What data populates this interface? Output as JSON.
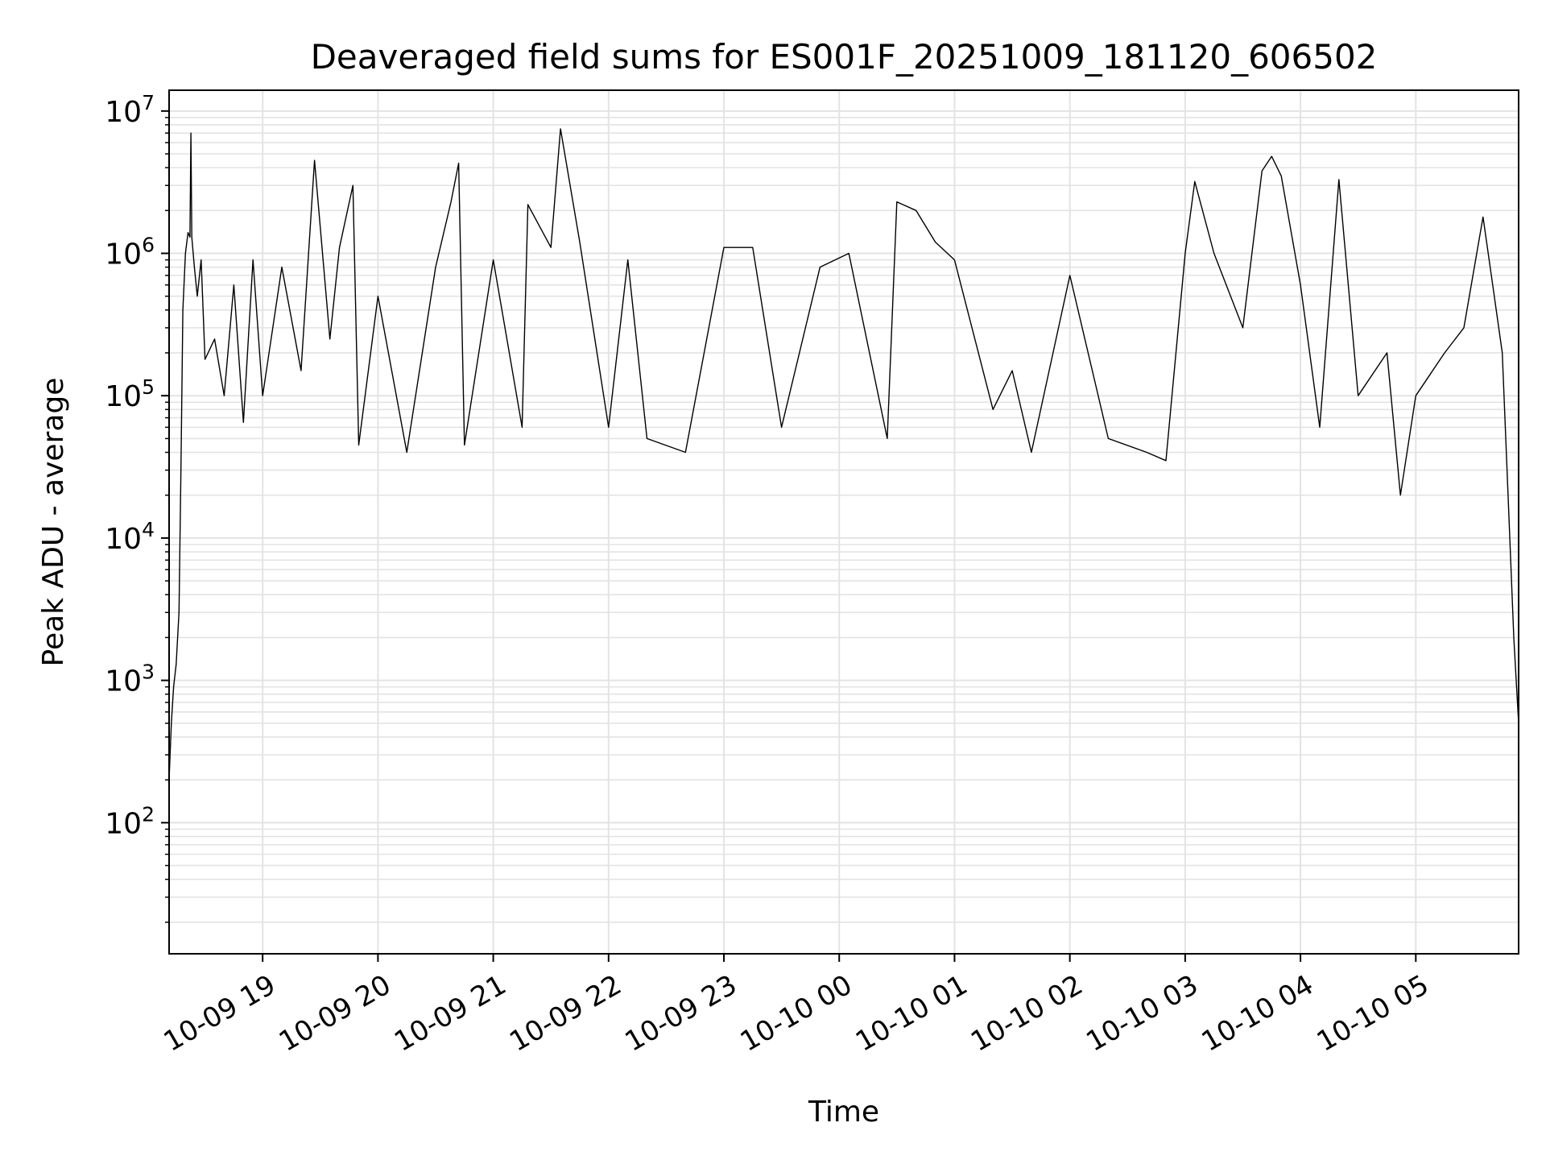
{
  "chart_data": {
    "type": "line",
    "title": "Deaveraged field sums for ES001F_20251009_181120_606502",
    "xlabel": "Time",
    "ylabel": "Peak ADU - average",
    "yscale": "log",
    "ylim": [
      12,
      14000000
    ],
    "xlim": [
      "2025-10-09 18:11:20",
      "2025-10-10 05:53:30"
    ],
    "grid": true,
    "line_color": "#000000",
    "grid_color": "#e3e3e3",
    "y_ticks": [
      {
        "base": "10",
        "exp": "2",
        "value": 100
      },
      {
        "base": "10",
        "exp": "3",
        "value": 1000
      },
      {
        "base": "10",
        "exp": "4",
        "value": 10000
      },
      {
        "base": "10",
        "exp": "5",
        "value": 100000
      },
      {
        "base": "10",
        "exp": "6",
        "value": 1000000
      },
      {
        "base": "10",
        "exp": "7",
        "value": 10000000
      }
    ],
    "x_ticks": [
      {
        "label": "10-09 19",
        "time": "2025-10-09 19:00"
      },
      {
        "label": "10-09 20",
        "time": "2025-10-09 20:00"
      },
      {
        "label": "10-09 21",
        "time": "2025-10-09 21:00"
      },
      {
        "label": "10-09 22",
        "time": "2025-10-09 22:00"
      },
      {
        "label": "10-09 23",
        "time": "2025-10-09 23:00"
      },
      {
        "label": "10-10 00",
        "time": "2025-10-10 00:00"
      },
      {
        "label": "10-10 01",
        "time": "2025-10-10 01:00"
      },
      {
        "label": "10-10 02",
        "time": "2025-10-10 02:00"
      },
      {
        "label": "10-10 03",
        "time": "2025-10-10 03:00"
      },
      {
        "label": "10-10 04",
        "time": "2025-10-10 04:00"
      },
      {
        "label": "10-10 05",
        "time": "2025-10-10 05:00"
      }
    ],
    "series": [
      {
        "points": [
          [
            "2025-10-09 18:11:20",
            200
          ],
          [
            "2025-10-09 18:12:30",
            500
          ],
          [
            "2025-10-09 18:13:40",
            900
          ],
          [
            "2025-10-09 18:15:00",
            1300
          ],
          [
            "2025-10-09 18:16:30",
            3000
          ],
          [
            "2025-10-09 18:17:30",
            30000
          ],
          [
            "2025-10-09 18:18:30",
            400000
          ],
          [
            "2025-10-09 18:19:50",
            1000000
          ],
          [
            "2025-10-09 18:21:10",
            1400000
          ],
          [
            "2025-10-09 18:22:10",
            1300000
          ],
          [
            "2025-10-09 18:22:40",
            7000000
          ],
          [
            "2025-10-09 18:23:10",
            1300000
          ],
          [
            "2025-10-09 18:24:30",
            800000
          ],
          [
            "2025-10-09 18:26:00",
            500000
          ],
          [
            "2025-10-09 18:28:00",
            900000
          ],
          [
            "2025-10-09 18:30:00",
            180000
          ],
          [
            "2025-10-09 18:35:00",
            250000
          ],
          [
            "2025-10-09 18:40:00",
            100000
          ],
          [
            "2025-10-09 18:45:00",
            600000
          ],
          [
            "2025-10-09 18:50:00",
            65000
          ],
          [
            "2025-10-09 18:55:00",
            900000
          ],
          [
            "2025-10-09 19:00:00",
            100000
          ],
          [
            "2025-10-09 19:10:00",
            800000
          ],
          [
            "2025-10-09 19:20:00",
            150000
          ],
          [
            "2025-10-09 19:27:00",
            4500000
          ],
          [
            "2025-10-09 19:35:00",
            250000
          ],
          [
            "2025-10-09 19:40:00",
            1100000
          ],
          [
            "2025-10-09 19:47:00",
            3000000
          ],
          [
            "2025-10-09 19:50:00",
            45000
          ],
          [
            "2025-10-09 20:00:00",
            500000
          ],
          [
            "2025-10-09 20:15:00",
            40000
          ],
          [
            "2025-10-09 20:30:00",
            800000
          ],
          [
            "2025-10-09 20:38:00",
            2300000
          ],
          [
            "2025-10-09 20:42:00",
            4300000
          ],
          [
            "2025-10-09 20:45:00",
            45000
          ],
          [
            "2025-10-09 21:00:00",
            900000
          ],
          [
            "2025-10-09 21:15:00",
            60000
          ],
          [
            "2025-10-09 21:18:00",
            2200000
          ],
          [
            "2025-10-09 21:30:00",
            1100000
          ],
          [
            "2025-10-09 21:35:00",
            7500000
          ],
          [
            "2025-10-09 21:45:00",
            1200000
          ],
          [
            "2025-10-09 22:00:00",
            60000
          ],
          [
            "2025-10-09 22:10:00",
            900000
          ],
          [
            "2025-10-09 22:20:00",
            50000
          ],
          [
            "2025-10-09 22:40:00",
            40000
          ],
          [
            "2025-10-09 23:00:00",
            1100000
          ],
          [
            "2025-10-09 23:15:00",
            1100000
          ],
          [
            "2025-10-09 23:30:00",
            60000
          ],
          [
            "2025-10-09 23:50:00",
            800000
          ],
          [
            "2025-10-10 00:05:00",
            1000000
          ],
          [
            "2025-10-10 00:25:00",
            50000
          ],
          [
            "2025-10-10 00:30:00",
            2300000
          ],
          [
            "2025-10-10 00:40:00",
            2000000
          ],
          [
            "2025-10-10 00:50:00",
            1200000
          ],
          [
            "2025-10-10 01:00:00",
            900000
          ],
          [
            "2025-10-10 01:20:00",
            80000
          ],
          [
            "2025-10-10 01:30:00",
            150000
          ],
          [
            "2025-10-10 01:40:00",
            40000
          ],
          [
            "2025-10-10 02:00:00",
            700000
          ],
          [
            "2025-10-10 02:20:00",
            50000
          ],
          [
            "2025-10-10 02:40:00",
            40000
          ],
          [
            "2025-10-10 02:50:00",
            35000
          ],
          [
            "2025-10-10 03:00:00",
            1000000
          ],
          [
            "2025-10-10 03:05:00",
            3200000
          ],
          [
            "2025-10-10 03:15:00",
            1000000
          ],
          [
            "2025-10-10 03:30:00",
            300000
          ],
          [
            "2025-10-10 03:40:00",
            3800000
          ],
          [
            "2025-10-10 03:45:00",
            4800000
          ],
          [
            "2025-10-10 03:50:00",
            3500000
          ],
          [
            "2025-10-10 04:00:00",
            600000
          ],
          [
            "2025-10-10 04:10:00",
            60000
          ],
          [
            "2025-10-10 04:20:00",
            3300000
          ],
          [
            "2025-10-10 04:30:00",
            100000
          ],
          [
            "2025-10-10 04:45:00",
            200000
          ],
          [
            "2025-10-10 04:52:00",
            20000
          ],
          [
            "2025-10-10 05:00:00",
            100000
          ],
          [
            "2025-10-10 05:15:00",
            200000
          ],
          [
            "2025-10-10 05:25:00",
            300000
          ],
          [
            "2025-10-10 05:35:00",
            1800000
          ],
          [
            "2025-10-10 05:40:00",
            600000
          ],
          [
            "2025-10-10 05:45:00",
            200000
          ],
          [
            "2025-10-10 05:48:00",
            20000
          ],
          [
            "2025-10-10 05:51:00",
            2000
          ],
          [
            "2025-10-10 05:53:30",
            500
          ]
        ]
      }
    ]
  }
}
